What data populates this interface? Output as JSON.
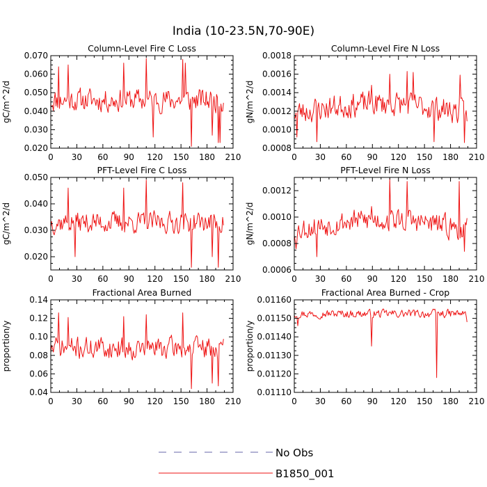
{
  "title": "India (10-23.5N,70-90E)",
  "colors": {
    "series": "#ee1111",
    "obs": "#6666aa"
  },
  "legend": {
    "placement": "bottom-center",
    "entries": [
      {
        "label": "No Obs",
        "style": "dashed",
        "color": "#6666aa"
      },
      {
        "label": "B1850_001",
        "style": "solid",
        "color": "#ee1111"
      }
    ]
  },
  "chart_data": [
    {
      "type": "line",
      "title": "Column-Level Fire C Loss",
      "ylabel": "gC/m^2/d",
      "xlim": [
        0,
        210
      ],
      "ylim": [
        0.02,
        0.07
      ],
      "xticks": [
        0,
        30,
        60,
        90,
        120,
        150,
        180,
        210
      ],
      "xtick_labels": [
        "0",
        "30",
        "60",
        "90",
        "120",
        "150",
        "180",
        "210"
      ],
      "yticks": [
        0.02,
        0.03,
        0.04,
        0.05,
        0.06,
        0.07
      ],
      "ytick_labels": [
        "0.020",
        "0.030",
        "0.040",
        "0.050",
        "0.060",
        "0.070"
      ],
      "series": [
        {
          "name": "B1850_001",
          "mean": 0.046,
          "amp": 0.0085,
          "min": 0.021,
          "max": 0.0685,
          "length": 200,
          "seed": 11,
          "spikes": [
            [
              9,
              0.064
            ],
            [
              20,
              0.065
            ],
            [
              84,
              0.066
            ],
            [
              110,
              0.0685
            ],
            [
              152,
              0.068
            ],
            [
              155,
              0.066
            ],
            [
              162,
              0.021
            ],
            [
              118,
              0.026
            ],
            [
              186,
              0.027
            ],
            [
              193,
              0.023
            ],
            [
              195,
              0.023
            ]
          ]
        }
      ]
    },
    {
      "type": "line",
      "title": "Column-Level Fire N Loss",
      "ylabel": "gN/m^2/d",
      "xlim": [
        0,
        210
      ],
      "ylim": [
        0.0008,
        0.0018
      ],
      "xticks": [
        0,
        30,
        60,
        90,
        120,
        150,
        180,
        210
      ],
      "xtick_labels": [
        "0",
        "30",
        "60",
        "90",
        "120",
        "150",
        "180",
        "210"
      ],
      "yticks": [
        0.0008,
        0.001,
        0.0012,
        0.0014,
        0.0016,
        0.0018
      ],
      "ytick_labels": [
        "0.0008",
        "0.0010",
        "0.0012",
        "0.0014",
        "0.0016",
        "0.0018"
      ],
      "series": [
        {
          "name": "B1850_001",
          "mean": 0.00118,
          "trend": 0.0001,
          "amp": 0.00018,
          "min": 0.00086,
          "max": 0.00163,
          "length": 200,
          "seed": 23,
          "spikes": [
            [
              3,
              0.00092
            ],
            [
              26,
              0.00087
            ],
            [
              89,
              0.00148
            ],
            [
              110,
              0.0016
            ],
            [
              130,
              0.00163
            ],
            [
              137,
              0.00162
            ],
            [
              161,
              0.00087
            ],
            [
              191,
              0.00159
            ],
            [
              196,
              0.00086
            ]
          ]
        }
      ]
    },
    {
      "type": "line",
      "title": "PFT-Level Fire C Loss",
      "ylabel": "gC/m^2/d",
      "xlim": [
        0,
        210
      ],
      "ylim": [
        0.015,
        0.05
      ],
      "xticks": [
        0,
        30,
        60,
        90,
        120,
        150,
        180,
        210
      ],
      "xtick_labels": [
        "0",
        "30",
        "60",
        "90",
        "120",
        "150",
        "180",
        "210"
      ],
      "yticks": [
        0.02,
        0.03,
        0.04,
        0.05
      ],
      "ytick_labels": [
        "0.020",
        "0.030",
        "0.040",
        "0.050"
      ],
      "series": [
        {
          "name": "B1850_001",
          "mean": 0.033,
          "amp": 0.0055,
          "min": 0.015,
          "max": 0.049,
          "length": 200,
          "seed": 37,
          "spikes": [
            [
              20,
              0.046
            ],
            [
              28,
              0.02
            ],
            [
              84,
              0.046
            ],
            [
              110,
              0.049
            ],
            [
              152,
              0.048
            ],
            [
              162,
              0.016
            ],
            [
              186,
              0.02
            ],
            [
              193,
              0.016
            ]
          ]
        }
      ]
    },
    {
      "type": "line",
      "title": "PFT-Level Fire N Loss",
      "ylabel": "gN/m^2/d",
      "xlim": [
        0,
        210
      ],
      "ylim": [
        0.0006,
        0.0013
      ],
      "xticks": [
        0,
        30,
        60,
        90,
        120,
        150,
        180,
        210
      ],
      "xtick_labels": [
        "0",
        "30",
        "60",
        "90",
        "120",
        "150",
        "180",
        "210"
      ],
      "yticks": [
        0.0006,
        0.0008,
        0.001,
        0.0012
      ],
      "ytick_labels": [
        "0.0006",
        "0.0008",
        "0.0010",
        "0.0012"
      ],
      "series": [
        {
          "name": "B1850_001",
          "mean": 0.0009,
          "trend": 8e-05,
          "amp": 0.00012,
          "min": 0.00069,
          "max": 0.00129,
          "length": 200,
          "seed": 53,
          "spikes": [
            [
              2,
              0.00076
            ],
            [
              26,
              0.0007
            ],
            [
              89,
              0.00108
            ],
            [
              110,
              0.00129
            ],
            [
              130,
              0.00127
            ],
            [
              190,
              0.00127
            ],
            [
              196,
              0.00074
            ]
          ]
        }
      ]
    },
    {
      "type": "line",
      "title": "Fractional Area Burned",
      "ylabel": "proportion/y",
      "xlim": [
        0,
        210
      ],
      "ylim": [
        0.04,
        0.14
      ],
      "xticks": [
        0,
        30,
        60,
        90,
        120,
        150,
        180,
        210
      ],
      "xtick_labels": [
        "0",
        "30",
        "60",
        "90",
        "120",
        "150",
        "180",
        "210"
      ],
      "yticks": [
        0.04,
        0.06,
        0.08,
        0.1,
        0.12,
        0.14
      ],
      "ytick_labels": [
        "0.04",
        "0.06",
        "0.08",
        "0.10",
        "0.12",
        "0.14"
      ],
      "series": [
        {
          "name": "B1850_001",
          "mean": 0.088,
          "amp": 0.016,
          "min": 0.044,
          "max": 0.126,
          "length": 200,
          "seed": 71,
          "spikes": [
            [
              9,
              0.126
            ],
            [
              20,
              0.121
            ],
            [
              84,
              0.122
            ],
            [
              110,
              0.124
            ],
            [
              152,
              0.126
            ],
            [
              162,
              0.044
            ],
            [
              186,
              0.05
            ],
            [
              193,
              0.047
            ]
          ]
        }
      ]
    },
    {
      "type": "line",
      "title": "Fractional Area Burned - Crop",
      "ylabel": "proportion/y",
      "xlim": [
        0,
        210
      ],
      "ylim": [
        0.0111,
        0.0116
      ],
      "xticks": [
        0,
        30,
        60,
        90,
        120,
        150,
        180,
        210
      ],
      "xtick_labels": [
        "0",
        "30",
        "60",
        "90",
        "120",
        "150",
        "180",
        "210"
      ],
      "yticks": [
        0.0111,
        0.0112,
        0.0113,
        0.0114,
        0.0115,
        0.0116
      ],
      "ytick_labels": [
        "0.01110",
        "0.01120",
        "0.01130",
        "0.01140",
        "0.01150",
        "0.01160"
      ],
      "series": [
        {
          "name": "B1850_001",
          "mean": 0.011525,
          "amp": 3e-05,
          "min": 0.01118,
          "max": 0.01155,
          "length": 200,
          "seed": 97,
          "spikes": [
            [
              4,
              0.01146
            ],
            [
              89,
              0.01135
            ],
            [
              164,
              0.01118
            ],
            [
              199,
              0.01148
            ]
          ]
        }
      ]
    }
  ]
}
